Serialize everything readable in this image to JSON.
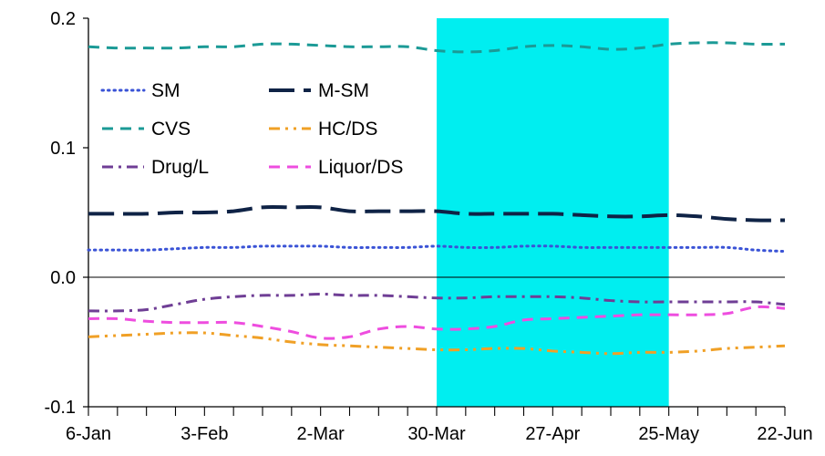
{
  "chart_data": {
    "type": "line",
    "title": "",
    "xlabel": "",
    "ylabel": "",
    "ylim": [
      -0.1,
      0.2
    ],
    "yticks": [
      "0.2",
      "0.1",
      "0.0",
      "-0.1"
    ],
    "xlim": [
      0,
      24
    ],
    "x_tick_labels": [
      "6-Jan",
      "3-Feb",
      "2-Mar",
      "30-Mar",
      "27-Apr",
      "25-May",
      "22-Jun"
    ],
    "x_ticks_per_label_gap": 4,
    "zero_line": true,
    "grid": false,
    "highlight": {
      "from_week": 12,
      "to_week": 20,
      "color": "#00eef0"
    },
    "legend_position": "upper-left",
    "series": [
      {
        "name": "SM",
        "color": "#3a53d6",
        "dash": "dotted",
        "values": [
          0.021,
          0.021,
          0.021,
          0.022,
          0.023,
          0.023,
          0.024,
          0.024,
          0.024,
          0.023,
          0.023,
          0.023,
          0.024,
          0.023,
          0.023,
          0.024,
          0.024,
          0.023,
          0.023,
          0.023,
          0.023,
          0.023,
          0.023,
          0.021,
          0.02
        ]
      },
      {
        "name": "M-SM",
        "color": "#0f2346",
        "dash": "longdash",
        "values": [
          0.049,
          0.049,
          0.049,
          0.05,
          0.05,
          0.051,
          0.054,
          0.054,
          0.054,
          0.051,
          0.051,
          0.051,
          0.051,
          0.049,
          0.049,
          0.049,
          0.049,
          0.048,
          0.047,
          0.047,
          0.048,
          0.047,
          0.045,
          0.044,
          0.044
        ]
      },
      {
        "name": "CVS",
        "color": "#1b9a96",
        "dash": "dashed",
        "values": [
          0.178,
          0.177,
          0.177,
          0.177,
          0.178,
          0.178,
          0.18,
          0.18,
          0.179,
          0.178,
          0.178,
          0.178,
          0.175,
          0.174,
          0.175,
          0.178,
          0.179,
          0.178,
          0.176,
          0.177,
          0.18,
          0.181,
          0.181,
          0.18,
          0.18
        ]
      },
      {
        "name": "HC/DS",
        "color": "#f0a026",
        "dash": "dashdotdot",
        "values": [
          -0.046,
          -0.045,
          -0.044,
          -0.043,
          -0.043,
          -0.045,
          -0.047,
          -0.05,
          -0.052,
          -0.053,
          -0.054,
          -0.055,
          -0.056,
          -0.056,
          -0.055,
          -0.055,
          -0.057,
          -0.058,
          -0.059,
          -0.058,
          -0.058,
          -0.057,
          -0.055,
          -0.054,
          -0.053
        ]
      },
      {
        "name": "Drug/L",
        "color": "#6f3e95",
        "dash": "dashdot",
        "values": [
          -0.026,
          -0.026,
          -0.025,
          -0.021,
          -0.017,
          -0.015,
          -0.014,
          -0.014,
          -0.013,
          -0.014,
          -0.014,
          -0.015,
          -0.016,
          -0.016,
          -0.015,
          -0.015,
          -0.015,
          -0.016,
          -0.018,
          -0.019,
          -0.019,
          -0.019,
          -0.019,
          -0.019,
          -0.021
        ]
      },
      {
        "name": "Liquor/DS",
        "color": "#ee4ddf",
        "dash": "dashed",
        "values": [
          -0.032,
          -0.032,
          -0.034,
          -0.035,
          -0.035,
          -0.035,
          -0.038,
          -0.042,
          -0.047,
          -0.046,
          -0.04,
          -0.038,
          -0.04,
          -0.04,
          -0.038,
          -0.033,
          -0.032,
          -0.031,
          -0.03,
          -0.029,
          -0.029,
          -0.029,
          -0.028,
          -0.023,
          -0.024
        ]
      }
    ]
  }
}
